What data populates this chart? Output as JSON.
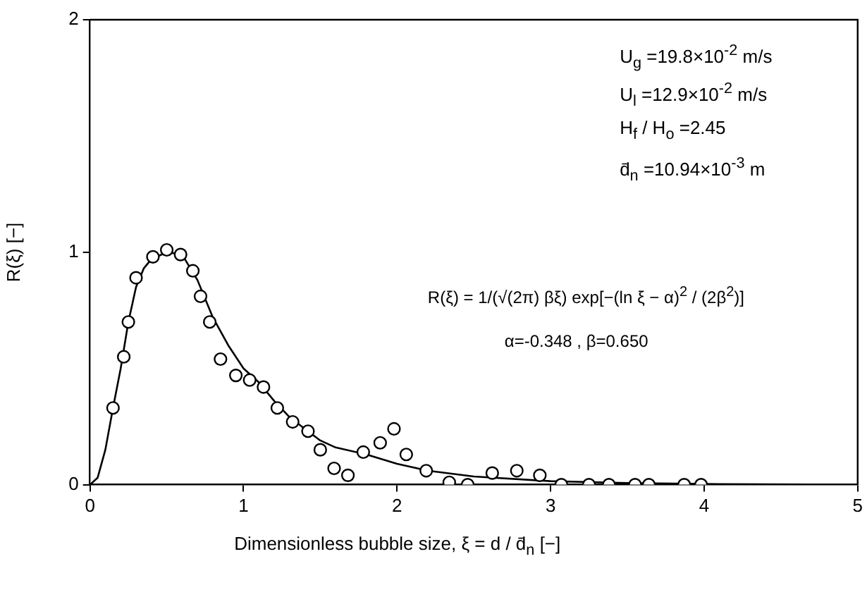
{
  "chart_data": {
    "type": "scatter",
    "xlabel": "Dimensionless   bubble size,   ξ = d / d̄$_{n}$   [−]",
    "ylabel": "R(ξ)   [−]",
    "xlim": [
      0,
      5
    ],
    "xticks": [
      0,
      1,
      2,
      3,
      4,
      5
    ],
    "ylim": [
      0,
      2
    ],
    "yticks": [
      0,
      1,
      2
    ],
    "grid": false,
    "legend": false,
    "annotations": [
      "U$_{g}$ =19.8×10$^{-2}$   m/s",
      "U$_{l}$ =12.9×10$^{-2}$   m/s",
      "H$_{f}$ / H$_{o}$ =2.45",
      "d̄$_{n}$ =10.94×10$^{-3}$   m",
      "R(ξ) = 1/(√(2π) βξ) exp[−(ln ξ − α)$^{2}$ / (2β$^{2}$)]",
      "α=-0.348 ,  β=0.650"
    ],
    "series": [
      {
        "type": "scatter",
        "marker": "circle",
        "color": "#000000",
        "x": [
          0.15,
          0.22,
          0.25,
          0.3,
          0.41,
          0.5,
          0.59,
          0.67,
          0.72,
          0.78,
          0.85,
          0.95,
          1.04,
          1.13,
          1.22,
          1.32,
          1.42,
          1.5,
          1.59,
          1.68,
          1.78,
          1.89,
          1.98,
          2.06,
          2.19,
          2.34,
          2.46,
          2.62,
          2.78,
          2.93,
          3.07,
          3.25,
          3.38,
          3.55,
          3.64,
          3.87,
          3.98
        ],
        "values": [
          0.33,
          0.55,
          0.7,
          0.89,
          0.98,
          1.01,
          0.99,
          0.92,
          0.81,
          0.7,
          0.54,
          0.47,
          0.45,
          0.42,
          0.33,
          0.27,
          0.23,
          0.15,
          0.07,
          0.04,
          0.14,
          0.18,
          0.24,
          0.13,
          0.06,
          0.01,
          0,
          0.05,
          0.06,
          0.04,
          0,
          0,
          0,
          0,
          0,
          0,
          0
        ]
      },
      {
        "type": "line",
        "marker": "none",
        "line_style": "solid",
        "color": "#000000",
        "x": [
          0,
          0.05,
          0.1,
          0.15,
          0.2,
          0.25,
          0.3,
          0.35,
          0.4,
          0.5,
          0.6,
          0.7,
          0.8,
          0.9,
          1.0,
          1.1,
          1.2,
          1.3,
          1.4,
          1.5,
          1.6,
          1.8,
          2.0,
          2.2,
          2.5,
          3.0,
          3.5,
          4.0,
          5.0
        ],
        "values": [
          0,
          0.03,
          0.15,
          0.33,
          0.5,
          0.7,
          0.85,
          0.93,
          0.97,
          1.0,
          0.99,
          0.88,
          0.72,
          0.6,
          0.5,
          0.44,
          0.36,
          0.29,
          0.24,
          0.19,
          0.16,
          0.13,
          0.09,
          0.06,
          0.035,
          0.015,
          0.007,
          0.003,
          0
        ]
      }
    ]
  }
}
